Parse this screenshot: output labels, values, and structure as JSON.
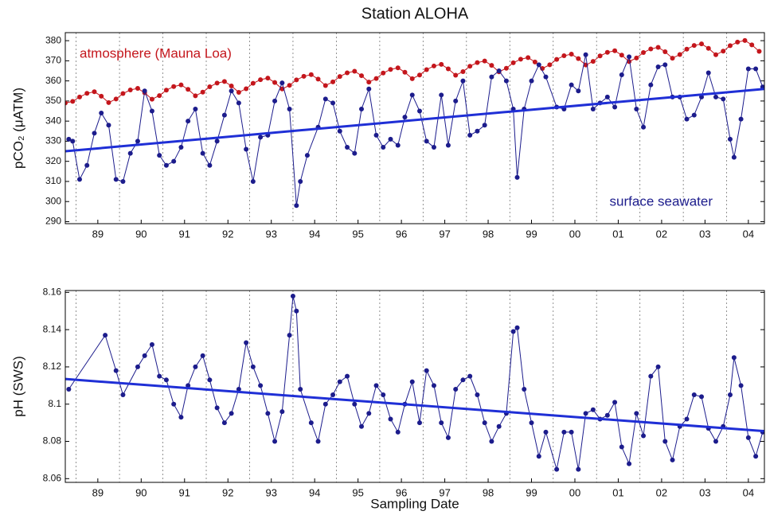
{
  "chart_data": [
    {
      "type": "line",
      "title": "Station ALOHA",
      "ylabel": "pCO₂ (μATM)",
      "xlim": [
        1988.75,
        2004.87
      ],
      "ylim": [
        289,
        384
      ],
      "xticks": [
        {
          "value": 1989.5,
          "label": "89"
        },
        {
          "value": 1990.5,
          "label": "90"
        },
        {
          "value": 1991.5,
          "label": "91"
        },
        {
          "value": 1992.5,
          "label": "92"
        },
        {
          "value": 1993.5,
          "label": "93"
        },
        {
          "value": 1994.5,
          "label": "94"
        },
        {
          "value": 1995.5,
          "label": "95"
        },
        {
          "value": 1996.5,
          "label": "96"
        },
        {
          "value": 1997.5,
          "label": "97"
        },
        {
          "value": 1998.5,
          "label": "98"
        },
        {
          "value": 1999.5,
          "label": "99"
        },
        {
          "value": 2000.5,
          "label": "00"
        },
        {
          "value": 2001.5,
          "label": "01"
        },
        {
          "value": 2002.5,
          "label": "02"
        },
        {
          "value": 2003.5,
          "label": "03"
        },
        {
          "value": 2004.5,
          "label": "04"
        }
      ],
      "yticks": [
        290,
        300,
        310,
        320,
        330,
        340,
        350,
        360,
        370,
        380
      ],
      "xgrid": [
        1989,
        1990,
        1991,
        1992,
        1993,
        1994,
        1995,
        1996,
        1997,
        1998,
        1999,
        2000,
        2001,
        2002,
        2003,
        2004
      ],
      "series": [
        {
          "name": "atmosphere (Mauna Loa)",
          "color": "#c4161c",
          "markers": true,
          "line_width": 1,
          "x": [
            1988.75,
            1988.92,
            1989.08,
            1989.25,
            1989.42,
            1989.58,
            1989.75,
            1989.92,
            1990.08,
            1990.25,
            1990.42,
            1990.58,
            1990.75,
            1990.92,
            1991.08,
            1991.25,
            1991.42,
            1991.58,
            1991.75,
            1991.92,
            1992.08,
            1992.25,
            1992.42,
            1992.58,
            1992.75,
            1992.92,
            1993.08,
            1993.25,
            1993.42,
            1993.58,
            1993.75,
            1993.92,
            1994.08,
            1994.25,
            1994.42,
            1994.58,
            1994.75,
            1994.92,
            1995.08,
            1995.25,
            1995.42,
            1995.58,
            1995.75,
            1995.92,
            1996.08,
            1996.25,
            1996.42,
            1996.58,
            1996.75,
            1996.92,
            1997.08,
            1997.25,
            1997.42,
            1997.58,
            1997.75,
            1997.92,
            1998.08,
            1998.25,
            1998.42,
            1998.58,
            1998.75,
            1998.92,
            1999.08,
            1999.25,
            1999.42,
            1999.58,
            1999.75,
            1999.92,
            2000.08,
            2000.25,
            2000.42,
            2000.58,
            2000.75,
            2000.92,
            2001.08,
            2001.25,
            2001.42,
            2001.58,
            2001.75,
            2001.92,
            2002.08,
            2002.25,
            2002.42,
            2002.58,
            2002.75,
            2002.92,
            2003.08,
            2003.25,
            2003.42,
            2003.58,
            2003.75,
            2003.92,
            2004.08,
            2004.25,
            2004.42,
            2004.58,
            2004.75
          ],
          "values": [
            349.0,
            349.8,
            352.0,
            353.8,
            354.6,
            352.4,
            349.2,
            351.0,
            353.7,
            355.5,
            356.3,
            354.1,
            350.9,
            352.7,
            355.4,
            357.2,
            358.0,
            355.8,
            352.6,
            354.4,
            357.1,
            358.9,
            359.7,
            357.5,
            354.3,
            356.1,
            358.8,
            360.6,
            361.4,
            359.2,
            356.0,
            357.8,
            360.5,
            362.3,
            363.1,
            360.9,
            357.7,
            359.5,
            362.2,
            364.0,
            364.8,
            362.6,
            359.4,
            361.2,
            363.9,
            365.7,
            366.5,
            364.3,
            361.1,
            362.9,
            365.6,
            367.4,
            368.2,
            366.0,
            362.8,
            364.6,
            367.3,
            369.1,
            369.9,
            367.7,
            364.5,
            366.3,
            369.0,
            370.8,
            371.6,
            369.4,
            366.2,
            368.0,
            370.7,
            372.5,
            373.3,
            371.1,
            367.9,
            369.7,
            372.4,
            374.2,
            375.0,
            372.8,
            369.6,
            371.4,
            374.1,
            375.9,
            376.7,
            374.5,
            371.3,
            373.1,
            375.8,
            377.6,
            378.4,
            376.2,
            373.0,
            374.8,
            377.5,
            379.3,
            380.1,
            377.9,
            374.7
          ]
        },
        {
          "name": "surface seawater",
          "color": "#1c1c8c",
          "markers": true,
          "line_width": 1,
          "x": [
            1988.83,
            1988.92,
            1989.08,
            1989.25,
            1989.42,
            1989.58,
            1989.75,
            1989.92,
            1990.08,
            1990.25,
            1990.42,
            1990.58,
            1990.75,
            1990.92,
            1991.08,
            1991.25,
            1991.42,
            1991.58,
            1991.75,
            1991.92,
            1992.08,
            1992.25,
            1992.42,
            1992.58,
            1992.75,
            1992.92,
            1993.08,
            1993.25,
            1993.42,
            1993.58,
            1993.75,
            1993.92,
            1994.08,
            1994.17,
            1994.33,
            1994.58,
            1994.75,
            1994.92,
            1995.08,
            1995.25,
            1995.42,
            1995.58,
            1995.75,
            1995.92,
            1996.08,
            1996.25,
            1996.42,
            1996.58,
            1996.75,
            1996.92,
            1997.08,
            1997.25,
            1997.42,
            1997.58,
            1997.75,
            1997.92,
            1998.08,
            1998.25,
            1998.42,
            1998.58,
            1998.75,
            1998.92,
            1999.08,
            1999.17,
            1999.33,
            1999.5,
            1999.67,
            1999.83,
            2000.08,
            2000.25,
            2000.42,
            2000.58,
            2000.75,
            2000.92,
            2001.08,
            2001.25,
            2001.42,
            2001.58,
            2001.75,
            2001.92,
            2002.08,
            2002.25,
            2002.42,
            2002.58,
            2002.75,
            2002.92,
            2003.08,
            2003.25,
            2003.42,
            2003.58,
            2003.75,
            2003.92,
            2004.08,
            2004.17,
            2004.33,
            2004.5,
            2004.67,
            2004.83
          ],
          "values": [
            331,
            330,
            311,
            318,
            334,
            344,
            338,
            311,
            310,
            324,
            330,
            355,
            345,
            323,
            318,
            320,
            327,
            340,
            346,
            324,
            318,
            330,
            343,
            355,
            349,
            326,
            310,
            332,
            333,
            350,
            359,
            346,
            298,
            310,
            323,
            337,
            351,
            349,
            335,
            327,
            324,
            346,
            356,
            333,
            327,
            331,
            328,
            342,
            353,
            345,
            330,
            327,
            353,
            328,
            350,
            360,
            333,
            335,
            338,
            362,
            365,
            360,
            346,
            312,
            346,
            360,
            368,
            362,
            347,
            346,
            358,
            355,
            373,
            346,
            349,
            352,
            347,
            363,
            372,
            346,
            337,
            358,
            367,
            368,
            352,
            352,
            341,
            343,
            352,
            364,
            352,
            351,
            331,
            322,
            341,
            366,
            366,
            357
          ]
        },
        {
          "color": "#1f2fd6",
          "markers": false,
          "line_width": 3,
          "x": [
            1988.75,
            2004.87
          ],
          "values": [
            325,
            356
          ]
        }
      ]
    },
    {
      "type": "line",
      "ylabel": "pH (SWS)",
      "xlabel": "Sampling Date",
      "xlim": [
        1988.75,
        2004.87
      ],
      "ylim": [
        8.058,
        8.161
      ],
      "xticks": [
        {
          "value": 1989.5,
          "label": "89"
        },
        {
          "value": 1990.5,
          "label": "90"
        },
        {
          "value": 1991.5,
          "label": "91"
        },
        {
          "value": 1992.5,
          "label": "92"
        },
        {
          "value": 1993.5,
          "label": "93"
        },
        {
          "value": 1994.5,
          "label": "94"
        },
        {
          "value": 1995.5,
          "label": "95"
        },
        {
          "value": 1996.5,
          "label": "96"
        },
        {
          "value": 1997.5,
          "label": "97"
        },
        {
          "value": 1998.5,
          "label": "98"
        },
        {
          "value": 1999.5,
          "label": "99"
        },
        {
          "value": 2000.5,
          "label": "00"
        },
        {
          "value": 2001.5,
          "label": "01"
        },
        {
          "value": 2002.5,
          "label": "02"
        },
        {
          "value": 2003.5,
          "label": "03"
        },
        {
          "value": 2004.5,
          "label": "04"
        }
      ],
      "yticks": [
        8.06,
        8.08,
        8.1,
        8.12,
        8.14,
        8.16
      ],
      "xgrid": [
        1989,
        1990,
        1991,
        1992,
        1993,
        1994,
        1995,
        1996,
        1997,
        1998,
        1999,
        2000,
        2001,
        2002,
        2003,
        2004
      ],
      "series": [
        {
          "color": "#1c1c8c",
          "markers": true,
          "line_width": 1,
          "x": [
            1988.83,
            1989.67,
            1989.92,
            1990.08,
            1990.42,
            1990.58,
            1990.75,
            1990.92,
            1991.08,
            1991.25,
            1991.42,
            1991.58,
            1991.75,
            1991.92,
            1992.08,
            1992.25,
            1992.42,
            1992.58,
            1992.75,
            1992.92,
            1993.08,
            1993.25,
            1993.42,
            1993.58,
            1993.75,
            1993.92,
            1994.0,
            1994.08,
            1994.17,
            1994.42,
            1994.58,
            1994.75,
            1994.92,
            1995.08,
            1995.25,
            1995.42,
            1995.58,
            1995.75,
            1995.92,
            1996.08,
            1996.25,
            1996.42,
            1996.58,
            1996.75,
            1996.92,
            1997.08,
            1997.25,
            1997.42,
            1997.58,
            1997.75,
            1997.92,
            1998.08,
            1998.25,
            1998.42,
            1998.58,
            1998.75,
            1998.92,
            1999.08,
            1999.17,
            1999.33,
            1999.5,
            1999.67,
            1999.83,
            2000.08,
            2000.25,
            2000.42,
            2000.58,
            2000.75,
            2000.92,
            2001.08,
            2001.25,
            2001.42,
            2001.58,
            2001.75,
            2001.92,
            2002.08,
            2002.25,
            2002.42,
            2002.58,
            2002.75,
            2002.92,
            2003.08,
            2003.25,
            2003.42,
            2003.58,
            2003.75,
            2003.92,
            2004.08,
            2004.17,
            2004.33,
            2004.5,
            2004.67,
            2004.83
          ],
          "values": [
            8.108,
            8.137,
            8.118,
            8.105,
            8.12,
            8.126,
            8.132,
            8.115,
            8.113,
            8.1,
            8.093,
            8.11,
            8.12,
            8.126,
            8.113,
            8.098,
            8.09,
            8.095,
            8.108,
            8.133,
            8.12,
            8.11,
            8.095,
            8.08,
            8.096,
            8.137,
            8.158,
            8.15,
            8.108,
            8.09,
            8.08,
            8.1,
            8.105,
            8.112,
            8.115,
            8.1,
            8.088,
            8.095,
            8.11,
            8.105,
            8.092,
            8.085,
            8.1,
            8.112,
            8.09,
            8.118,
            8.11,
            8.09,
            8.082,
            8.108,
            8.113,
            8.115,
            8.105,
            8.09,
            8.08,
            8.088,
            8.095,
            8.139,
            8.141,
            8.108,
            8.09,
            8.072,
            8.085,
            8.065,
            8.085,
            8.085,
            8.065,
            8.095,
            8.097,
            8.092,
            8.094,
            8.101,
            8.077,
            8.068,
            8.095,
            8.083,
            8.115,
            8.12,
            8.08,
            8.07,
            8.088,
            8.092,
            8.105,
            8.104,
            8.087,
            8.08,
            8.088,
            8.105,
            8.125,
            8.11,
            8.082,
            8.072,
            8.085
          ]
        },
        {
          "color": "#1f2fd6",
          "markers": false,
          "line_width": 3,
          "x": [
            1988.75,
            2004.87
          ],
          "values": [
            8.1135,
            8.0855
          ]
        }
      ]
    }
  ]
}
